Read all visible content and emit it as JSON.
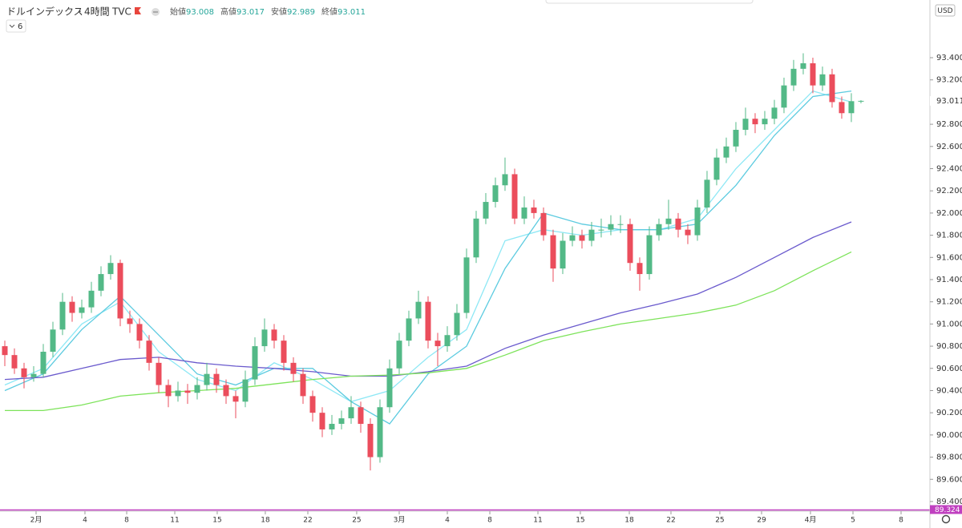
{
  "chart_data": {
    "type": "candlestick",
    "title": "ドルインデックス",
    "interval": "4時間",
    "source": "TVC",
    "indicator_count": 6,
    "currency": "USD",
    "ohlc_labels": [
      "始値",
      "高値",
      "安値",
      "終値"
    ],
    "up_color": "#53b987",
    "down_color": "#eb4d5c",
    "xlim": [
      -0.5,
      96.17
    ],
    "xticks": [
      {
        "value": 3.25,
        "label": "2月"
      },
      {
        "value": 8.33,
        "label": "4"
      },
      {
        "value": 12.67,
        "label": "8"
      },
      {
        "value": 17.67,
        "label": "11"
      },
      {
        "value": 22.08,
        "label": "15"
      },
      {
        "value": 27.08,
        "label": "18"
      },
      {
        "value": 31.5,
        "label": "22"
      },
      {
        "value": 36.58,
        "label": "25"
      },
      {
        "value": 41,
        "label": "3月"
      },
      {
        "value": 46,
        "label": "4"
      },
      {
        "value": 50.42,
        "label": "8"
      },
      {
        "value": 55.42,
        "label": "11"
      },
      {
        "value": 59.83,
        "label": "15"
      },
      {
        "value": 64.92,
        "label": "18"
      },
      {
        "value": 69.25,
        "label": "22"
      },
      {
        "value": 74.33,
        "label": "25"
      },
      {
        "value": 78.67,
        "label": "29"
      },
      {
        "value": 83.75,
        "label": "4月"
      },
      {
        "value": 88.17,
        "label": "5"
      },
      {
        "value": 93.17,
        "label": "8"
      }
    ],
    "ylim": [
      89.313,
      93.92
    ],
    "yticks": [
      {
        "value": 89.4,
        "label": "89.400"
      },
      {
        "value": 89.6,
        "label": "89.600"
      },
      {
        "value": 89.8,
        "label": "89.800"
      },
      {
        "value": 90.0,
        "label": "90.000"
      },
      {
        "value": 90.2,
        "label": "90.200"
      },
      {
        "value": 90.4,
        "label": "90.400"
      },
      {
        "value": 90.6,
        "label": "90.600"
      },
      {
        "value": 90.8,
        "label": "90.800"
      },
      {
        "value": 91.0,
        "label": "91.000"
      },
      {
        "value": 91.2,
        "label": "91.200"
      },
      {
        "value": 91.4,
        "label": "91.400"
      },
      {
        "value": 91.6,
        "label": "91.600"
      },
      {
        "value": 91.8,
        "label": "91.800"
      },
      {
        "value": 92.0,
        "label": "92.000"
      },
      {
        "value": 92.2,
        "label": "92.200"
      },
      {
        "value": 92.4,
        "label": "92.400"
      },
      {
        "value": 92.6,
        "label": "92.600"
      },
      {
        "value": 92.8,
        "label": "92.800"
      },
      {
        "value": 93.0,
        "label": "93.000"
      },
      {
        "value": 93.2,
        "label": "93.200"
      },
      {
        "value": 93.4,
        "label": "93.400"
      }
    ],
    "hline": {
      "value": 89.324,
      "color": "#c040c0"
    },
    "series": [
      {
        "values": [
          [
            90.8,
            90.85,
            90.62,
            90.72
          ],
          [
            90.72,
            90.78,
            90.55,
            90.6
          ],
          [
            90.6,
            90.65,
            90.42,
            90.52
          ],
          [
            90.52,
            90.62,
            90.48,
            90.55
          ],
          [
            90.55,
            90.82,
            90.52,
            90.75
          ],
          [
            90.75,
            91.02,
            90.7,
            90.95
          ],
          [
            90.95,
            91.28,
            90.9,
            91.2
          ],
          [
            91.2,
            91.25,
            91.02,
            91.1
          ],
          [
            91.1,
            91.22,
            91.05,
            91.15
          ],
          [
            91.15,
            91.38,
            91.1,
            91.3
          ],
          [
            91.3,
            91.52,
            91.25,
            91.45
          ],
          [
            91.45,
            91.62,
            91.4,
            91.55
          ],
          [
            91.55,
            91.58,
            90.98,
            91.05
          ],
          [
            91.05,
            91.12,
            90.92,
            91.0
          ],
          [
            91.0,
            91.05,
            90.78,
            90.85
          ],
          [
            90.85,
            90.9,
            90.58,
            90.65
          ],
          [
            90.65,
            90.7,
            90.38,
            90.45
          ],
          [
            90.45,
            90.5,
            90.25,
            90.35
          ],
          [
            90.35,
            90.48,
            90.3,
            90.4
          ],
          [
            90.4,
            90.46,
            90.28,
            90.38
          ],
          [
            90.38,
            90.52,
            90.32,
            90.45
          ],
          [
            90.45,
            90.65,
            90.4,
            90.55
          ],
          [
            90.55,
            90.6,
            90.38,
            90.45
          ],
          [
            90.45,
            90.5,
            90.28,
            90.35
          ],
          [
            90.35,
            90.4,
            90.15,
            90.3
          ],
          [
            90.3,
            90.58,
            90.25,
            90.5
          ],
          [
            90.5,
            90.88,
            90.45,
            90.8
          ],
          [
            90.8,
            91.05,
            90.75,
            90.95
          ],
          [
            90.95,
            91.0,
            90.78,
            90.85
          ],
          [
            90.85,
            90.9,
            90.58,
            90.65
          ],
          [
            90.65,
            90.7,
            90.48,
            90.55
          ],
          [
            90.55,
            90.6,
            90.28,
            90.35
          ],
          [
            90.35,
            90.4,
            90.12,
            90.2
          ],
          [
            90.2,
            90.25,
            89.98,
            90.05
          ],
          [
            90.05,
            90.18,
            90.0,
            90.1
          ],
          [
            90.1,
            90.22,
            90.05,
            90.15
          ],
          [
            90.15,
            90.35,
            90.1,
            90.25
          ],
          [
            90.25,
            90.3,
            90.02,
            90.1
          ],
          [
            90.1,
            90.15,
            89.68,
            89.8
          ],
          [
            89.8,
            90.32,
            89.75,
            90.25
          ],
          [
            90.25,
            90.68,
            90.2,
            90.6
          ],
          [
            90.6,
            90.92,
            90.55,
            90.85
          ],
          [
            90.85,
            91.12,
            90.8,
            91.05
          ],
          [
            91.05,
            91.3,
            91.0,
            91.2
          ],
          [
            91.2,
            91.25,
            90.78,
            90.85
          ],
          [
            90.85,
            90.92,
            90.62,
            90.8
          ],
          [
            90.8,
            90.98,
            90.75,
            90.9
          ],
          [
            90.9,
            91.18,
            90.85,
            91.1
          ],
          [
            91.1,
            91.68,
            91.05,
            91.6
          ],
          [
            91.6,
            92.02,
            91.55,
            91.95
          ],
          [
            91.95,
            92.18,
            91.9,
            92.1
          ],
          [
            92.1,
            92.32,
            92.05,
            92.25
          ],
          [
            92.25,
            92.5,
            92.2,
            92.35
          ],
          [
            92.35,
            92.4,
            91.9,
            91.95
          ],
          [
            91.95,
            92.15,
            91.9,
            92.05
          ],
          [
            92.05,
            92.12,
            91.95,
            92.0
          ],
          [
            92.0,
            92.05,
            91.75,
            91.8
          ],
          [
            91.8,
            91.85,
            91.38,
            91.5
          ],
          [
            91.5,
            91.82,
            91.45,
            91.75
          ],
          [
            91.75,
            91.88,
            91.7,
            91.8
          ],
          [
            91.8,
            91.85,
            91.68,
            91.75
          ],
          [
            91.75,
            91.92,
            91.7,
            91.85
          ],
          [
            91.85,
            91.95,
            91.78,
            91.85
          ],
          [
            91.85,
            91.98,
            91.8,
            91.9
          ],
          [
            91.9,
            91.98,
            91.82,
            91.9
          ],
          [
            91.9,
            91.95,
            91.48,
            91.55
          ],
          [
            91.55,
            91.6,
            91.3,
            91.45
          ],
          [
            91.45,
            91.88,
            91.4,
            91.8
          ],
          [
            91.8,
            91.95,
            91.75,
            91.9
          ],
          [
            91.9,
            92.12,
            91.85,
            91.95
          ],
          [
            91.95,
            92.0,
            91.78,
            91.85
          ],
          [
            91.85,
            91.9,
            91.72,
            91.8
          ],
          [
            91.8,
            92.12,
            91.75,
            92.05
          ],
          [
            92.05,
            92.38,
            92.0,
            92.3
          ],
          [
            92.3,
            92.58,
            92.25,
            92.5
          ],
          [
            92.5,
            92.68,
            92.45,
            92.6
          ],
          [
            92.6,
            92.82,
            92.55,
            92.75
          ],
          [
            92.75,
            92.95,
            92.7,
            92.85
          ],
          [
            92.85,
            92.9,
            92.72,
            92.8
          ],
          [
            92.8,
            92.92,
            92.75,
            92.85
          ],
          [
            92.85,
            93.02,
            92.8,
            92.95
          ],
          [
            92.95,
            93.22,
            92.9,
            93.15
          ],
          [
            93.15,
            93.38,
            93.1,
            93.3
          ],
          [
            93.3,
            93.44,
            93.25,
            93.35
          ],
          [
            93.35,
            93.4,
            93.08,
            93.15
          ],
          [
            93.15,
            93.32,
            93.1,
            93.25
          ],
          [
            93.25,
            93.3,
            92.95,
            93.0
          ],
          [
            93.0,
            93.05,
            92.85,
            92.9
          ],
          [
            92.9,
            93.08,
            92.82,
            93.008
          ],
          [
            93.008,
            93.017,
            92.989,
            93.011
          ]
        ]
      }
    ],
    "line_x": [
      0,
      4,
      8,
      12,
      16,
      20,
      24,
      28,
      32,
      36,
      40,
      44,
      48,
      52,
      56,
      60,
      64,
      68,
      72,
      76,
      80,
      84,
      88
    ],
    "lines": [
      {
        "color": "#8ee8f5",
        "values": [
          90.45,
          90.6,
          91.0,
          91.2,
          90.75,
          90.5,
          90.4,
          90.65,
          90.5,
          90.3,
          90.4,
          90.7,
          90.95,
          91.75,
          91.85,
          91.8,
          91.85,
          91.85,
          91.95,
          92.4,
          92.75,
          93.1,
          93.0
        ]
      },
      {
        "color": "#5ccbe0",
        "values": [
          90.4,
          90.55,
          90.95,
          91.25,
          90.9,
          90.55,
          90.45,
          90.6,
          90.6,
          90.3,
          90.1,
          90.55,
          90.8,
          91.5,
          92.0,
          91.9,
          91.85,
          91.85,
          91.9,
          92.25,
          92.7,
          93.05,
          93.1
        ]
      },
      {
        "color": "#6a5acd",
        "values": [
          90.5,
          90.52,
          90.6,
          90.68,
          90.7,
          90.65,
          90.62,
          90.6,
          90.57,
          90.53,
          90.53,
          90.57,
          90.62,
          90.78,
          90.9,
          91.0,
          91.1,
          91.18,
          91.27,
          91.42,
          91.6,
          91.78,
          91.92
        ]
      },
      {
        "color": "#7de35a",
        "values": [
          90.22,
          90.22,
          90.27,
          90.35,
          90.38,
          90.4,
          90.42,
          90.46,
          90.5,
          90.53,
          90.54,
          90.56,
          90.6,
          90.72,
          90.85,
          90.93,
          91.0,
          91.05,
          91.1,
          91.17,
          91.3,
          91.48,
          91.65
        ]
      }
    ]
  }
}
